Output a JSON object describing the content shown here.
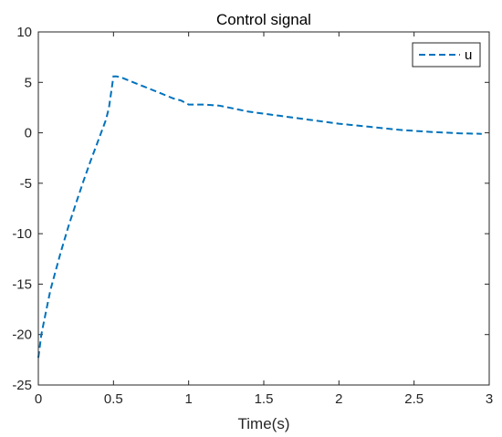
{
  "chart_data": {
    "type": "line",
    "title": "Control signal",
    "xlabel": "Time(s)",
    "ylabel": "",
    "xlim": [
      0,
      3
    ],
    "ylim": [
      -25,
      10
    ],
    "xticks": [
      0,
      0.5,
      1,
      1.5,
      2,
      2.5,
      3
    ],
    "xtick_labels": [
      "0",
      "0.5",
      "1",
      "1.5",
      "2",
      "2.5",
      "3"
    ],
    "yticks": [
      -25,
      -20,
      -15,
      -10,
      -5,
      0,
      5,
      10
    ],
    "ytick_labels": [
      "-25",
      "-20",
      "-15",
      "-10",
      "-5",
      "0",
      "5",
      "10"
    ],
    "grid": false,
    "legend_position": "top-right",
    "series": [
      {
        "name": "u",
        "color": "#0072BD",
        "line_style": "dashed",
        "x": [
          0,
          0.02,
          0.05,
          0.08,
          0.1,
          0.15,
          0.2,
          0.25,
          0.3,
          0.35,
          0.4,
          0.45,
          0.47,
          0.5,
          0.52,
          0.55,
          0.6,
          0.65,
          0.7,
          0.8,
          0.9,
          0.95,
          1.0,
          1.05,
          1.1,
          1.2,
          1.3,
          1.4,
          1.5,
          1.6,
          1.8,
          2.0,
          2.2,
          2.4,
          2.6,
          2.8,
          2.95
        ],
        "y": [
          -22.3,
          -20.0,
          -17.8,
          -15.6,
          -14.5,
          -11.8,
          -9.3,
          -7.0,
          -4.8,
          -2.7,
          -0.7,
          1.3,
          2.5,
          5.6,
          5.6,
          5.5,
          5.2,
          4.9,
          4.6,
          4.0,
          3.4,
          3.2,
          2.8,
          2.8,
          2.8,
          2.7,
          2.4,
          2.1,
          1.9,
          1.7,
          1.3,
          0.9,
          0.6,
          0.3,
          0.1,
          -0.05,
          -0.1
        ]
      }
    ]
  }
}
